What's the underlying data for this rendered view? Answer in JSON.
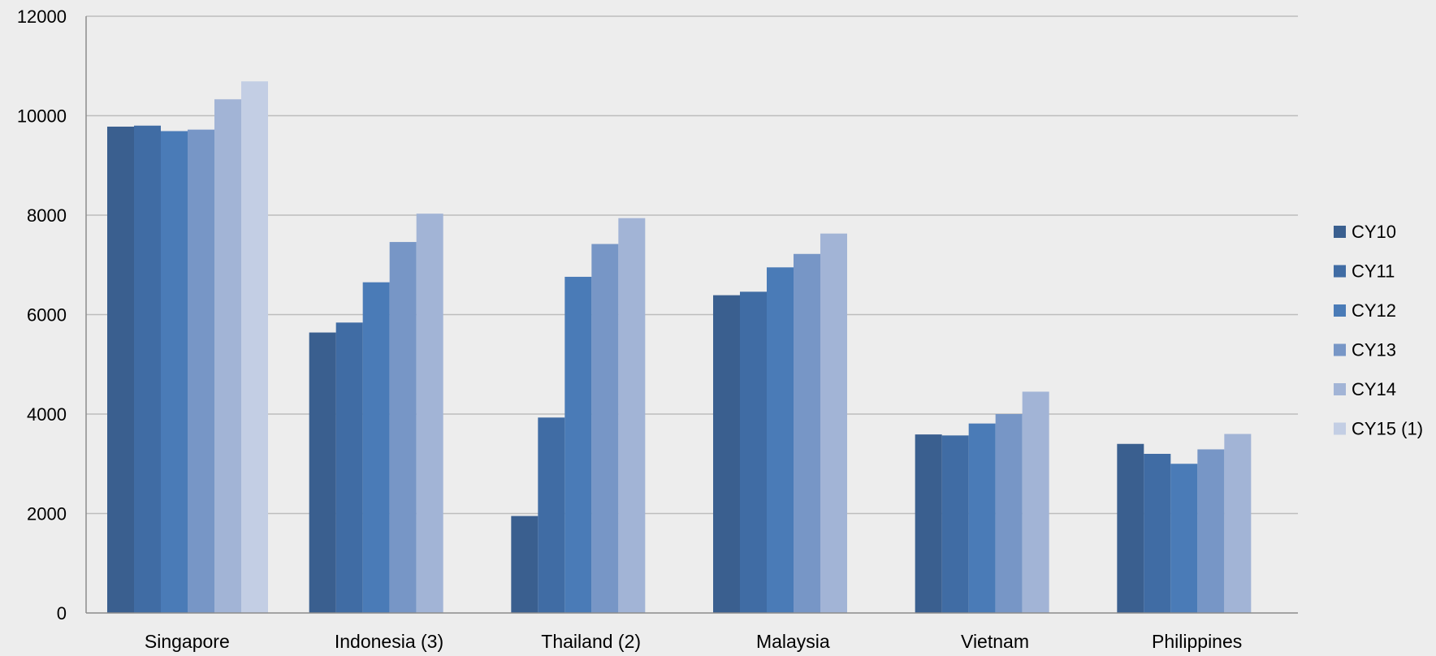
{
  "chart_data": {
    "type": "bar",
    "title": "",
    "xlabel": "",
    "ylabel": "",
    "ylim": [
      0,
      12000
    ],
    "yticks": [
      0,
      2000,
      4000,
      6000,
      8000,
      10000,
      12000
    ],
    "grid": true,
    "legend_position": "right",
    "categories": [
      "Singapore",
      "Indonesia (3)",
      "Thailand (2)",
      "Malaysia",
      "Vietnam",
      "Philippines"
    ],
    "series": [
      {
        "name": "CY10",
        "color": "#3a5f8f",
        "values": [
          9780,
          5640,
          1950,
          6390,
          3590,
          3400
        ]
      },
      {
        "name": "CY11",
        "color": "#406ca4",
        "values": [
          9800,
          5840,
          3930,
          6460,
          3570,
          3200
        ]
      },
      {
        "name": "CY12",
        "color": "#4a7bb7",
        "values": [
          9690,
          6650,
          6760,
          6950,
          3810,
          3000
        ]
      },
      {
        "name": "CY13",
        "color": "#7796c6",
        "values": [
          9720,
          7460,
          7420,
          7220,
          4000,
          3290
        ]
      },
      {
        "name": "CY14",
        "color": "#a2b4d6",
        "values": [
          10330,
          8030,
          7940,
          7630,
          4450,
          3600
        ]
      },
      {
        "name": "CY15 (1)",
        "color": "#c3cee4",
        "values": [
          10690,
          null,
          null,
          null,
          null,
          null
        ]
      }
    ]
  }
}
